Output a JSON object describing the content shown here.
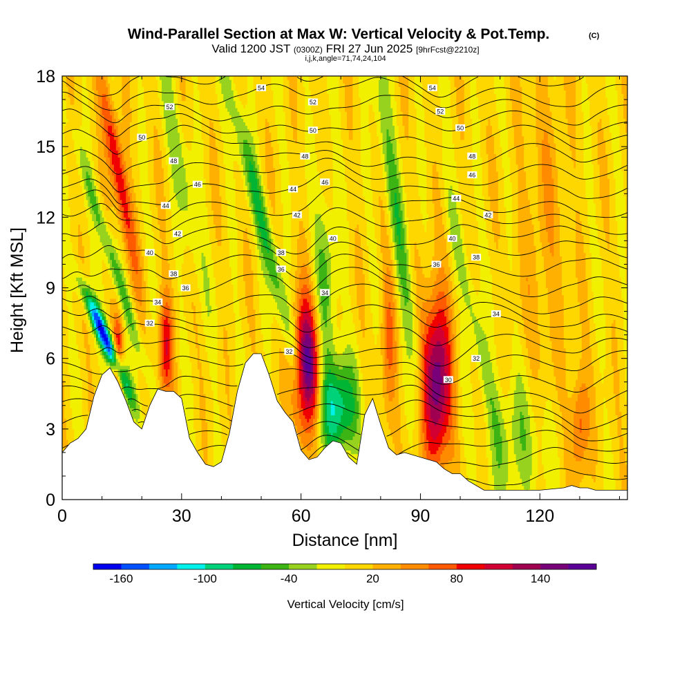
{
  "title": {
    "main": "Wind-Parallel Section at Max W: Vertical Velocity & Pot.Temp.",
    "copyright": "(C)",
    "valid_prefix": "Valid 1200 JST",
    "utc": "(0300Z)",
    "date": "FRI 27 Jun 2025",
    "forecast": "[9hrFcst@2210z]",
    "indices": "i,j,k,angle=71,74,24,104"
  },
  "chart_data": {
    "type": "heatmap",
    "xlabel": "Distance [nm]",
    "ylabel": "Height [Kft MSL]",
    "xlim": [
      0,
      142
    ],
    "ylim": [
      0,
      18
    ],
    "xticks": [
      0,
      30,
      60,
      90,
      120
    ],
    "yticks": [
      0,
      3,
      6,
      9,
      12,
      15,
      18
    ],
    "xtick_labels": [
      "0",
      "30",
      "60",
      "90",
      "120"
    ],
    "ytick_labels": [
      "0",
      "3",
      "6",
      "9",
      "12",
      "15",
      "18"
    ],
    "colorbar": {
      "label": "Vertical Velocity [cm/s]",
      "ticks": [
        -160,
        -100,
        -40,
        20,
        80,
        140
      ],
      "tick_labels": [
        "-160",
        "-100",
        "-40",
        "20",
        "80",
        "140"
      ],
      "range": [
        -180,
        180
      ],
      "step": 20,
      "colors": [
        "#0000ee",
        "#0050ff",
        "#00a8ff",
        "#00f0ea",
        "#00d27a",
        "#00b434",
        "#3cb414",
        "#96d21e",
        "#f0f000",
        "#ffd700",
        "#ffb000",
        "#ff8c00",
        "#ff5a00",
        "#f00000",
        "#d20032",
        "#a00050",
        "#780078",
        "#5a0096"
      ]
    },
    "terrain": [
      [
        0,
        2
      ],
      [
        2,
        2.4
      ],
      [
        4,
        2.6
      ],
      [
        6,
        3
      ],
      [
        8,
        4.4
      ],
      [
        10,
        5.3
      ],
      [
        12,
        5.6
      ],
      [
        14,
        5
      ],
      [
        16,
        4.2
      ],
      [
        18,
        3.3
      ],
      [
        20,
        3
      ],
      [
        22,
        4
      ],
      [
        24,
        4.7
      ],
      [
        26,
        4.6
      ],
      [
        28,
        4.6
      ],
      [
        30,
        4.3
      ],
      [
        32,
        2.6
      ],
      [
        34,
        2
      ],
      [
        36,
        1.5
      ],
      [
        38,
        1.4
      ],
      [
        40,
        1.6
      ],
      [
        42,
        2.8
      ],
      [
        44,
        4.6
      ],
      [
        46,
        5.8
      ],
      [
        48,
        6.2
      ],
      [
        50,
        6.2
      ],
      [
        52,
        5.3
      ],
      [
        54,
        4.2
      ],
      [
        56,
        3.7
      ],
      [
        58,
        3.3
      ],
      [
        60,
        2.1
      ],
      [
        62,
        1.7
      ],
      [
        64,
        1.8
      ],
      [
        66,
        2.2
      ],
      [
        68,
        2.5
      ],
      [
        70,
        2.4
      ],
      [
        72,
        1.8
      ],
      [
        74,
        1.5
      ],
      [
        76,
        3.6
      ],
      [
        78,
        4.3
      ],
      [
        80,
        3.2
      ],
      [
        82,
        2.2
      ],
      [
        84,
        1.9
      ],
      [
        86,
        2
      ],
      [
        88,
        1.9
      ],
      [
        90,
        1.8
      ],
      [
        92,
        1.7
      ],
      [
        94,
        1.6
      ],
      [
        96,
        1.3
      ],
      [
        98,
        1.1
      ],
      [
        100,
        1.1
      ],
      [
        102,
        0.8
      ],
      [
        104,
        0.6
      ],
      [
        106,
        0.4
      ],
      [
        108,
        0.4
      ],
      [
        110,
        0.4
      ],
      [
        120,
        0.4
      ],
      [
        126,
        0.5
      ],
      [
        128,
        0.6
      ],
      [
        130,
        0.5
      ],
      [
        132,
        0.5
      ],
      [
        134,
        0.4
      ],
      [
        136,
        0.4
      ],
      [
        140,
        0.4
      ],
      [
        142,
        0.4
      ]
    ],
    "w_features": [
      {
        "x": 11,
        "z": 6.8,
        "sx": 1.3,
        "sz": 1.6,
        "tilt": -2.5,
        "amp": -175
      },
      {
        "x": 13,
        "z": 10,
        "sx": 1.2,
        "sz": 4,
        "tilt": -1.8,
        "amp": -60
      },
      {
        "x": 14,
        "z": 14,
        "sx": 1.4,
        "sz": 3,
        "tilt": -1.0,
        "amp": 100
      },
      {
        "x": 14,
        "z": 6.2,
        "sx": 1.0,
        "sz": 1.2,
        "tilt": 0,
        "amp": 90
      },
      {
        "x": 26,
        "z": 6.5,
        "sx": 1.3,
        "sz": 1.6,
        "tilt": 0,
        "amp": 85
      },
      {
        "x": 61.5,
        "z": 5.5,
        "sx": 2.4,
        "sz": 2.1,
        "tilt": 0,
        "amp": 165
      },
      {
        "x": 69,
        "z": 3.9,
        "sx": 3.4,
        "sz": 1.5,
        "tilt": 0,
        "amp": -110
      },
      {
        "x": 94,
        "z": 5,
        "sx": 2.6,
        "sz": 2.7,
        "tilt": 0,
        "amp": 150
      },
      {
        "x": 82,
        "z": 7,
        "sx": 1.4,
        "sz": 2.5,
        "tilt": 0,
        "amp": 50
      },
      {
        "x": 50,
        "z": 12,
        "sx": 1.5,
        "sz": 5,
        "tilt": -1.4,
        "amp": -70
      },
      {
        "x": 66,
        "z": 9,
        "sx": 2,
        "sz": 3,
        "tilt": 0,
        "amp": -55
      },
      {
        "x": 84,
        "z": 12,
        "sx": 1.6,
        "sz": 5,
        "tilt": -0.8,
        "amp": -60
      },
      {
        "x": 103,
        "z": 8,
        "sx": 1.5,
        "sz": 4,
        "tilt": -1.2,
        "amp": -45
      },
      {
        "x": 30,
        "z": 14,
        "sx": 1.8,
        "sz": 4,
        "tilt": -1.0,
        "amp": -40
      },
      {
        "x": 130,
        "z": 3.2,
        "sx": 1.6,
        "sz": 1.6,
        "tilt": 0,
        "amp": 70
      },
      {
        "x": 115,
        "z": 2.5,
        "sx": 6,
        "sz": 2,
        "tilt": 0,
        "amp": -40
      },
      {
        "x": 121,
        "z": 11,
        "sx": 4,
        "sz": 6,
        "tilt": 0,
        "amp": 25
      }
    ],
    "theta_contours": {
      "interval": 1,
      "levels": [
        28,
        54
      ],
      "labels": [
        {
          "text": "54",
          "x": 50,
          "z": 17.5
        },
        {
          "text": "54",
          "x": 93,
          "z": 17.5
        },
        {
          "text": "52",
          "x": 27,
          "z": 16.7
        },
        {
          "text": "52",
          "x": 63,
          "z": 16.9
        },
        {
          "text": "52",
          "x": 95,
          "z": 16.5
        },
        {
          "text": "50",
          "x": 20,
          "z": 15.4
        },
        {
          "text": "50",
          "x": 63,
          "z": 15.7
        },
        {
          "text": "50",
          "x": 100,
          "z": 15.8
        },
        {
          "text": "48",
          "x": 28,
          "z": 14.4
        },
        {
          "text": "48",
          "x": 61,
          "z": 14.6
        },
        {
          "text": "48",
          "x": 103,
          "z": 14.6
        },
        {
          "text": "46",
          "x": 34,
          "z": 13.4
        },
        {
          "text": "46",
          "x": 66,
          "z": 13.5
        },
        {
          "text": "46",
          "x": 103,
          "z": 13.8
        },
        {
          "text": "44",
          "x": 26,
          "z": 12.5
        },
        {
          "text": "44",
          "x": 58,
          "z": 13.2
        },
        {
          "text": "44",
          "x": 99,
          "z": 12.8
        },
        {
          "text": "42",
          "x": 29,
          "z": 11.3
        },
        {
          "text": "42",
          "x": 59,
          "z": 12.1
        },
        {
          "text": "42",
          "x": 107,
          "z": 12.1
        },
        {
          "text": "40",
          "x": 22,
          "z": 10.5
        },
        {
          "text": "40",
          "x": 68,
          "z": 11.1
        },
        {
          "text": "40",
          "x": 98,
          "z": 11.1
        },
        {
          "text": "38",
          "x": 28,
          "z": 9.6
        },
        {
          "text": "38",
          "x": 55,
          "z": 10.5
        },
        {
          "text": "38",
          "x": 104,
          "z": 10.3
        },
        {
          "text": "36",
          "x": 31,
          "z": 9.0
        },
        {
          "text": "36",
          "x": 55,
          "z": 9.8
        },
        {
          "text": "36",
          "x": 94,
          "z": 10.0
        },
        {
          "text": "34",
          "x": 24,
          "z": 8.4
        },
        {
          "text": "34",
          "x": 66,
          "z": 8.8
        },
        {
          "text": "34",
          "x": 109,
          "z": 7.9
        },
        {
          "text": "32",
          "x": 22,
          "z": 7.5
        },
        {
          "text": "32",
          "x": 57,
          "z": 6.3
        },
        {
          "text": "32",
          "x": 104,
          "z": 6.0
        },
        {
          "text": "30",
          "x": 97,
          "z": 5.1
        }
      ]
    }
  }
}
